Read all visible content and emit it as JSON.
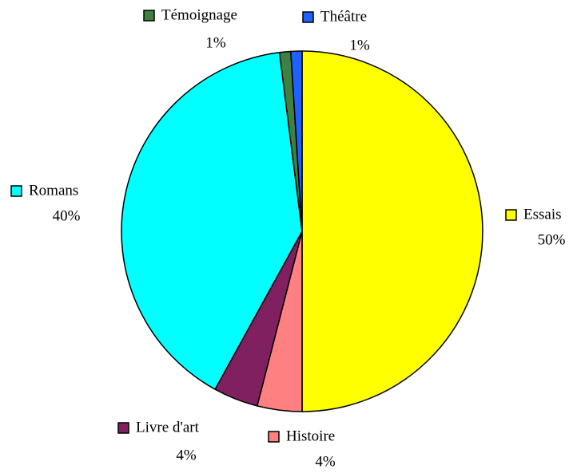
{
  "chart_data": {
    "type": "pie",
    "categories": [
      "Essais",
      "Histoire",
      "Livre d'art",
      "Romans",
      "Témoignage",
      "Théâtre"
    ],
    "values": [
      50,
      4,
      4,
      40,
      1,
      1
    ],
    "value_labels": [
      "50%",
      "4%",
      "4%",
      "40%",
      "1%",
      "1%"
    ],
    "colors": [
      "#ffff00",
      "#ff8080",
      "#802060",
      "#00ffff",
      "#408040",
      "#2060ff"
    ]
  }
}
